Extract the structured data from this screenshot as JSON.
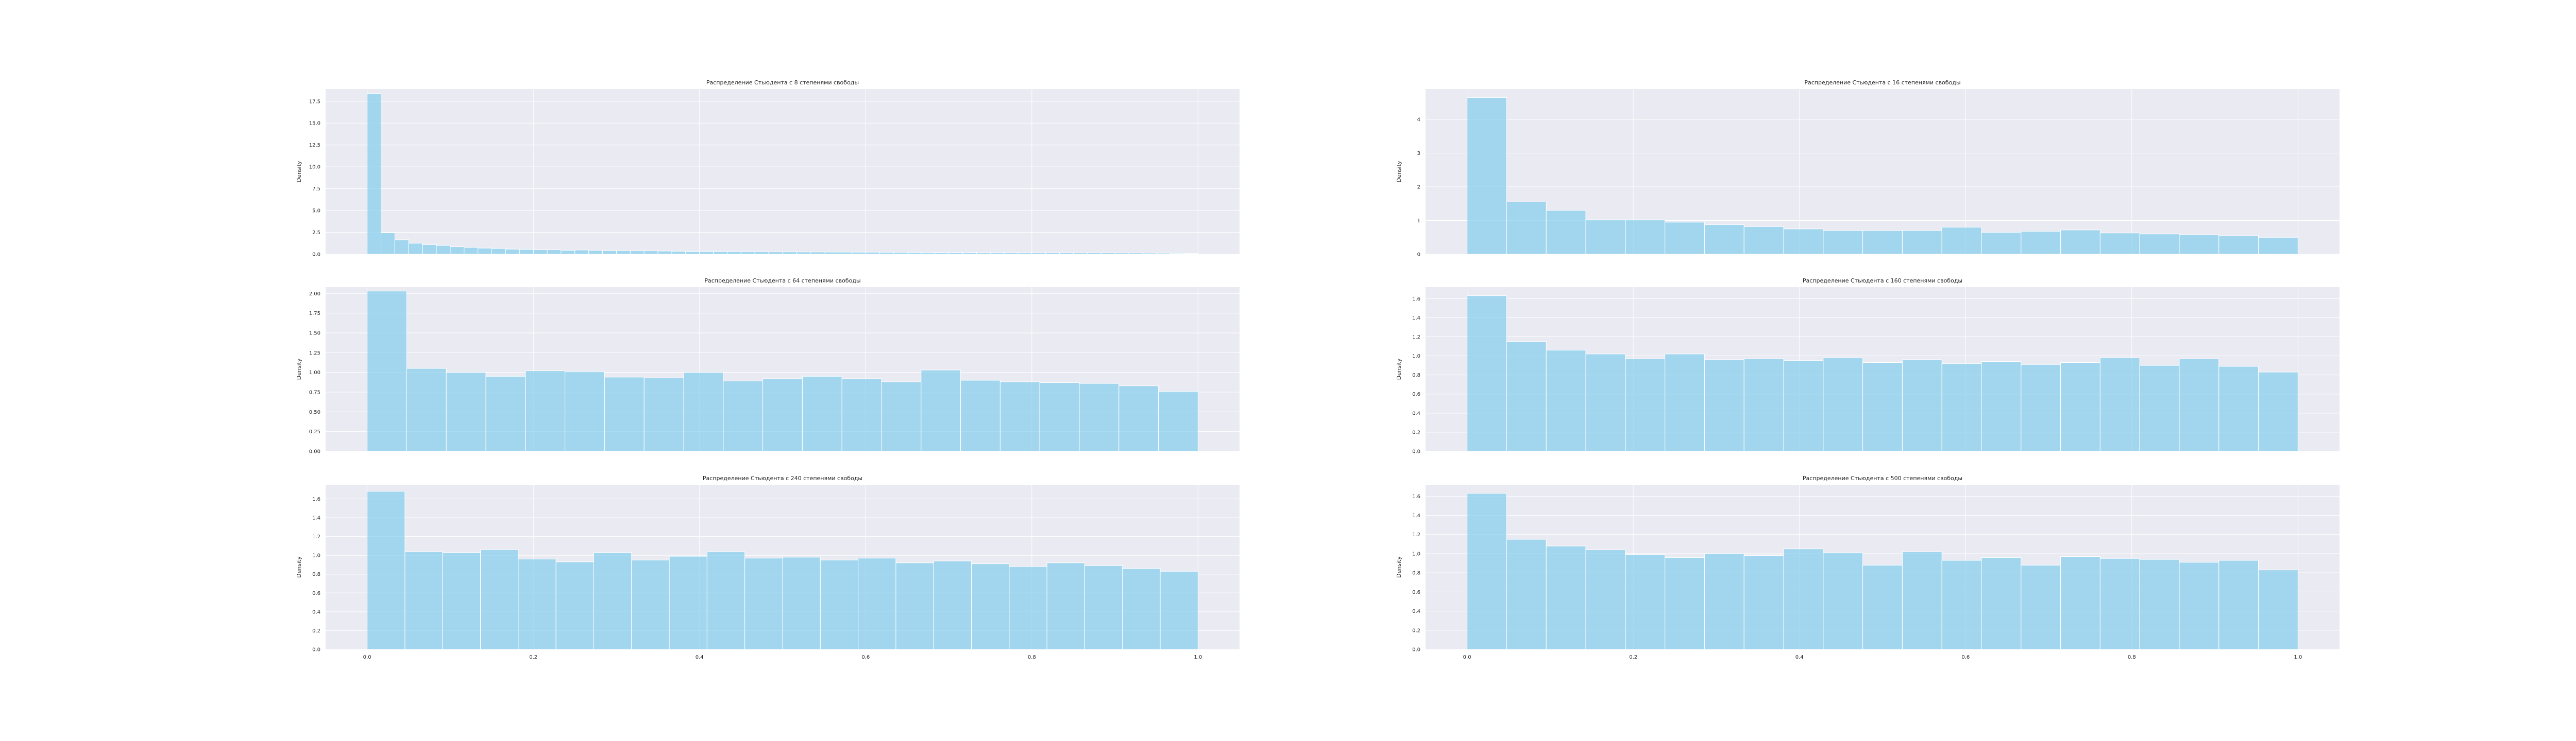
{
  "colors": {
    "background": "#eaeaf2",
    "bar": "#87ceeb",
    "grid": "#ffffff",
    "text": "#262626"
  },
  "chart_data": [
    {
      "type": "bar",
      "title": "Распределение Стьюдента с 8 степенями свободы",
      "ylabel": "Density",
      "xlim": [
        -0.05,
        1.05
      ],
      "ylim": [
        0,
        18.9
      ],
      "xticks": [],
      "yticks": [
        "0.0",
        "2.5",
        "5.0",
        "7.5",
        "10.0",
        "12.5",
        "15.0",
        "17.5"
      ],
      "bin_edges_range": [
        0,
        1
      ],
      "values": [
        18.4,
        2.45,
        1.65,
        1.25,
        1.1,
        1.0,
        0.85,
        0.78,
        0.7,
        0.65,
        0.58,
        0.55,
        0.5,
        0.5,
        0.45,
        0.48,
        0.45,
        0.42,
        0.4,
        0.38,
        0.38,
        0.36,
        0.34,
        0.32,
        0.3,
        0.3,
        0.3,
        0.28,
        0.28,
        0.26,
        0.26,
        0.25,
        0.25,
        0.24,
        0.24,
        0.23,
        0.23,
        0.22,
        0.22,
        0.21,
        0.21,
        0.2,
        0.2,
        0.2,
        0.19,
        0.19,
        0.18,
        0.18,
        0.17,
        0.17,
        0.16,
        0.16,
        0.15,
        0.15,
        0.14,
        0.14,
        0.13,
        0.12,
        0.1,
        0.08
      ]
    },
    {
      "type": "bar",
      "title": "Распределение Стьюдента с 16 степенями свободы",
      "ylabel": "Density",
      "xlim": [
        -0.05,
        1.05
      ],
      "ylim": [
        0,
        4.9
      ],
      "xticks": [],
      "yticks": [
        "0",
        "1",
        "2",
        "3",
        "4"
      ],
      "bin_edges_range": [
        0,
        1
      ],
      "values": [
        4.65,
        1.55,
        1.3,
        1.02,
        1.02,
        0.95,
        0.88,
        0.82,
        0.75,
        0.7,
        0.7,
        0.7,
        0.8,
        0.65,
        0.68,
        0.72,
        0.63,
        0.6,
        0.58,
        0.55,
        0.5
      ]
    },
    {
      "type": "bar",
      "title": "Распределение Стьюдента с 64 степенями свободы",
      "ylabel": "Density",
      "xlim": [
        -0.05,
        1.05
      ],
      "ylim": [
        0,
        2.08
      ],
      "xticks": [],
      "yticks": [
        "0.00",
        "0.25",
        "0.50",
        "0.75",
        "1.00",
        "1.25",
        "1.50",
        "1.75",
        "2.00"
      ],
      "bin_edges_range": [
        0,
        1
      ],
      "values": [
        2.03,
        1.05,
        1.0,
        0.95,
        1.02,
        1.01,
        0.94,
        0.93,
        1.0,
        0.89,
        0.92,
        0.95,
        0.92,
        0.88,
        1.03,
        0.9,
        0.88,
        0.87,
        0.86,
        0.83,
        0.76
      ]
    },
    {
      "type": "bar",
      "title": "Распределение Стьюдента с 160 степенями свободы",
      "ylabel": "Density",
      "xlim": [
        -0.05,
        1.05
      ],
      "ylim": [
        0,
        1.72
      ],
      "xticks": [],
      "yticks": [
        "0.0",
        "0.2",
        "0.4",
        "0.6",
        "0.8",
        "1.0",
        "1.2",
        "1.4",
        "1.6"
      ],
      "bin_edges_range": [
        0,
        1
      ],
      "values": [
        1.63,
        1.15,
        1.06,
        1.02,
        0.97,
        1.02,
        0.96,
        0.97,
        0.95,
        0.98,
        0.93,
        0.96,
        0.92,
        0.94,
        0.91,
        0.93,
        0.98,
        0.9,
        0.97,
        0.89,
        0.83
      ]
    },
    {
      "type": "bar",
      "title": "Распределение Стьюдента с 240 степенями свободы",
      "ylabel": "Density",
      "xlim": [
        -0.05,
        1.05
      ],
      "ylim": [
        0,
        1.75
      ],
      "xticks": [
        "0.0",
        "0.2",
        "0.4",
        "0.6",
        "0.8",
        "1.0"
      ],
      "yticks": [
        "0.0",
        "0.2",
        "0.4",
        "0.6",
        "0.8",
        "1.0",
        "1.2",
        "1.4",
        "1.6"
      ],
      "bin_edges_range": [
        0,
        1
      ],
      "values": [
        1.68,
        1.04,
        1.03,
        1.06,
        0.96,
        0.93,
        1.03,
        0.95,
        0.99,
        1.04,
        0.97,
        0.98,
        0.95,
        0.97,
        0.92,
        0.94,
        0.91,
        0.88,
        0.92,
        0.89,
        0.86,
        0.83
      ]
    },
    {
      "type": "bar",
      "title": "Распределение Стьюдента с 500 степенями свободы",
      "ylabel": "Density",
      "xlim": [
        -0.05,
        1.05
      ],
      "ylim": [
        0,
        1.72
      ],
      "xticks": [
        "0.0",
        "0.2",
        "0.4",
        "0.6",
        "0.8",
        "1.0"
      ],
      "yticks": [
        "0.0",
        "0.2",
        "0.4",
        "0.6",
        "0.8",
        "1.0",
        "1.2",
        "1.4",
        "1.6"
      ],
      "bin_edges_range": [
        0,
        1
      ],
      "values": [
        1.63,
        1.15,
        1.08,
        1.04,
        0.99,
        0.96,
        1.0,
        0.98,
        1.05,
        1.01,
        0.88,
        1.02,
        0.93,
        0.96,
        0.88,
        0.97,
        0.95,
        0.94,
        0.91,
        0.93,
        0.83
      ]
    }
  ]
}
